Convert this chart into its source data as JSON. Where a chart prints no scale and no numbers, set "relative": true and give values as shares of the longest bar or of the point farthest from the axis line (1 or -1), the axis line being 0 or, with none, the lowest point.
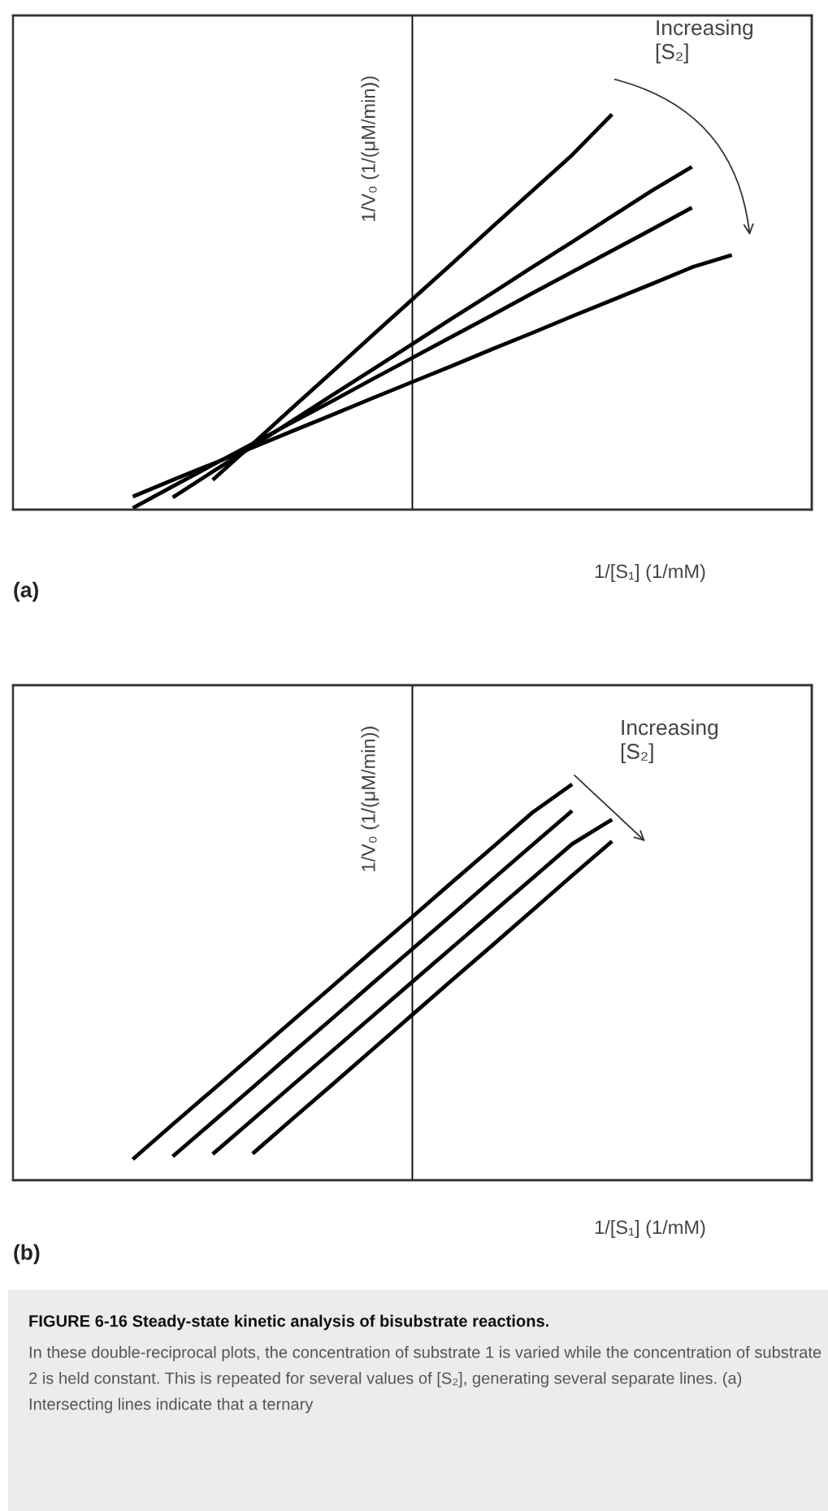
{
  "chart_data": [
    {
      "type": "line",
      "title": "(a)",
      "xlabel": "1/[S₁] (1/mM)",
      "ylabel": "1/V₀ (1/(μM/min))",
      "relative": true,
      "categories": [
        null,
        null,
        null,
        null,
        null,
        null,
        null,
        null,
        null,
        null,
        null,
        null,
        null,
        null,
        null,
        null,
        null,
        null,
        null,
        null,
        null
      ],
      "series": [
        {
          "color": "#000000",
          "values": [
            null,
            null,
            null,
            null,
            null,
            0.075,
            0.166,
            0.258,
            0.349,
            0.441,
            0.532,
            0.623,
            0.715,
            0.806,
            0.897,
            1.0,
            null,
            null,
            null,
            null,
            null
          ]
        },
        {
          "color": "#000000",
          "values": [
            null,
            null,
            null,
            null,
            0.031,
            0.096,
            0.16,
            0.225,
            0.29,
            0.354,
            0.419,
            0.484,
            0.548,
            0.613,
            0.677,
            0.742,
            0.807,
            0.867,
            null,
            null,
            null
          ]
        },
        {
          "color": "#000000",
          "values": [
            null,
            null,
            null,
            0.004,
            0.059,
            0.113,
            0.167,
            0.221,
            0.275,
            0.33,
            0.384,
            0.438,
            0.492,
            0.547,
            0.601,
            0.655,
            0.709,
            0.764,
            null,
            null,
            null
          ]
        },
        {
          "color": "#000000",
          "values": [
            null,
            null,
            null,
            0.033,
            0.075,
            0.116,
            0.157,
            0.199,
            0.24,
            0.282,
            0.323,
            0.364,
            0.406,
            0.447,
            0.489,
            0.53,
            0.571,
            0.613,
            0.644,
            null,
            null
          ]
        }
      ],
      "annotations": [
        "Increasing [S₂]"
      ]
    },
    {
      "type": "line",
      "title": "(b)",
      "xlabel": "1/[S₁] (1/mM)",
      "ylabel": "1/V₀ (1/(μM/min))",
      "relative": true,
      "categories": [
        null,
        null,
        null,
        null,
        null,
        null,
        null,
        null,
        null,
        null,
        null,
        null,
        null,
        null,
        null,
        null,
        null,
        null,
        null,
        null,
        null
      ],
      "series": [
        {
          "color": "#000000",
          "values": [
            null,
            null,
            null,
            0.053,
            0.141,
            0.228,
            0.315,
            0.403,
            0.49,
            0.578,
            0.665,
            0.753,
            0.84,
            0.928,
            1.0,
            null,
            null,
            null,
            null,
            null,
            null
          ]
        },
        {
          "color": "#000000",
          "values": [
            null,
            null,
            null,
            null,
            0.06,
            0.147,
            0.234,
            0.322,
            0.409,
            0.497,
            0.584,
            0.671,
            0.759,
            0.846,
            0.933,
            null,
            null,
            null,
            null,
            null,
            null
          ]
        },
        {
          "color": "#000000",
          "values": [
            null,
            null,
            null,
            null,
            null,
            0.066,
            0.153,
            0.24,
            0.327,
            0.414,
            0.501,
            0.588,
            0.675,
            0.762,
            0.849,
            0.911,
            null,
            null,
            null,
            null,
            null
          ]
        },
        {
          "color": "#000000",
          "values": [
            null,
            null,
            null,
            null,
            null,
            null,
            0.067,
            0.155,
            0.242,
            0.33,
            0.418,
            0.506,
            0.593,
            0.681,
            0.769,
            0.856,
            null,
            null,
            null,
            null,
            null
          ]
        }
      ],
      "annotations": [
        "Increasing [S₂]",
        "FIGURE 6-16 Steady-state kinetic analysis of bisubstrate reactions.",
        "In these double-reciprocal plots, the concentration of substrate 1 is varied while the concentration of substrate 2 is held constant. This is repeated for several values of [S₂], generating several separate lines. (a) Intersecting lines indicate that a ternary"
      ]
    }
  ]
}
